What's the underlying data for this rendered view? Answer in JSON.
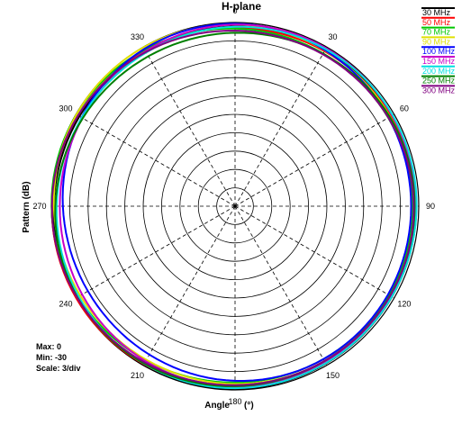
{
  "chart_data": {
    "type": "polar",
    "title": "H-plane",
    "xlabel": "Angle",
    "xlabel_unit": "(°)",
    "ylabel": "Pattern (dB)",
    "angle_ticks": [
      "0",
      "330",
      "300",
      "270",
      "240",
      "210",
      "180",
      "150",
      "120",
      "90",
      "60",
      "30"
    ],
    "angle_direction": "counterclockwise, 0 at top",
    "r_range": [
      -30,
      0
    ],
    "r_step": 3,
    "stats": {
      "max": "Max: 0",
      "min": "Min: -30",
      "scale": "Scale: 3/div"
    },
    "legend_position": "top-right",
    "series": [
      {
        "name": "30 MHz",
        "color": "#000000",
        "min_db": -0.8
      },
      {
        "name": "50 MHz",
        "color": "#ff0000",
        "min_db": -1.0
      },
      {
        "name": "70 MHz",
        "color": "#00c800",
        "min_db": -1.6
      },
      {
        "name": "90 MHz",
        "color": "#e0e000",
        "min_db": -1.2
      },
      {
        "name": "100 MHz",
        "color": "#0000ff",
        "min_db": -2.4
      },
      {
        "name": "150 MHz",
        "color": "#c800c8",
        "min_db": -1.4
      },
      {
        "name": "200 MHz",
        "color": "#00e0e0",
        "min_db": -1.1
      },
      {
        "name": "250 MHz",
        "color": "#008000",
        "min_db": -1.8
      },
      {
        "name": "300 MHz",
        "color": "#800080",
        "min_db": -1.5
      }
    ]
  }
}
